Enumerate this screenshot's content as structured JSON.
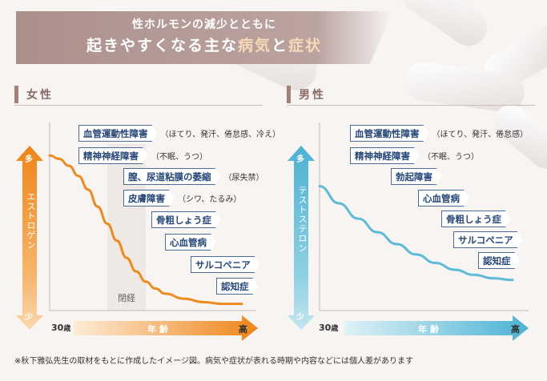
{
  "title": {
    "line1": "性ホルモンの減少とともに",
    "line2_pre": "起きやすくなる主な",
    "line2_highlight1": "病気",
    "line2_mid": "と",
    "line2_highlight2": "症状"
  },
  "sections": {
    "female": "女性",
    "male": "男性"
  },
  "female_chart": {
    "hormone_label": "エストロゲン",
    "high_label": "多",
    "low_label": "少",
    "age_start": "30",
    "age_unit": "歳",
    "age_axis_label": "年齢",
    "age_end": "高",
    "menopause_label": "閉経",
    "conditions": [
      {
        "name": "血管運動性障害",
        "note": "（ほてり、発汗、倦怠感、冷え）"
      },
      {
        "name": "精神神経障害",
        "note": "（不眠、うつ）"
      },
      {
        "name": "膣、尿道粘膜の萎縮",
        "note": "（尿失禁）"
      },
      {
        "name": "皮膚障害",
        "note": "（シワ、たるみ）"
      },
      {
        "name": "骨粗しょう症",
        "note": ""
      },
      {
        "name": "心血管病",
        "note": ""
      },
      {
        "name": "サルコペニア",
        "note": ""
      },
      {
        "name": "認知症",
        "note": ""
      }
    ]
  },
  "male_chart": {
    "hormone_label": "テストステロン",
    "high_label": "多",
    "low_label": "少",
    "age_start": "30",
    "age_unit": "歳",
    "age_axis_label": "年齢",
    "age_end": "高",
    "conditions": [
      {
        "name": "血管運動性障害",
        "note": "（ほてり、発汗、倦怠感）"
      },
      {
        "name": "精神神経障害",
        "note": "（不眠、うつ）"
      },
      {
        "name": "勃起障害",
        "note": ""
      },
      {
        "name": "心血管病",
        "note": ""
      },
      {
        "name": "骨粗しょう症",
        "note": ""
      },
      {
        "name": "サルコペニア",
        "note": ""
      },
      {
        "name": "認知症",
        "note": ""
      }
    ]
  },
  "chart_data": [
    {
      "type": "line",
      "title": "女性",
      "series": [
        {
          "name": "エストロゲン",
          "x": [
            0,
            0.05,
            0.1,
            0.15,
            0.2,
            0.25,
            0.3,
            0.35,
            0.4,
            0.45,
            0.5,
            0.55,
            0.6,
            0.7,
            0.8,
            0.9,
            1.0
          ],
          "values": [
            0.9,
            0.88,
            0.84,
            0.78,
            0.7,
            0.6,
            0.5,
            0.4,
            0.3,
            0.22,
            0.16,
            0.12,
            0.09,
            0.06,
            0.04,
            0.03,
            0.03
          ]
        }
      ],
      "xlabel": "年齢",
      "ylabel": "エストロゲン",
      "xlim": [
        0,
        1
      ],
      "ylim": [
        0,
        1
      ],
      "annotations": [
        "閉経"
      ]
    },
    {
      "type": "line",
      "title": "男性",
      "series": [
        {
          "name": "テストステロン",
          "x": [
            0,
            0.1,
            0.2,
            0.3,
            0.4,
            0.5,
            0.6,
            0.7,
            0.8,
            0.9,
            1.0
          ],
          "values": [
            0.72,
            0.62,
            0.53,
            0.45,
            0.38,
            0.32,
            0.27,
            0.23,
            0.2,
            0.18,
            0.17
          ]
        }
      ],
      "xlabel": "年齢",
      "ylabel": "テストステロン",
      "xlim": [
        0,
        1
      ],
      "ylim": [
        0,
        1
      ]
    }
  ],
  "footnote": "※秋下雅弘先生の取材をもとに作成したイメージ図。病気や症状が表れる時期や内容などには個人差があります",
  "colors": {
    "female_curve": "#ee8a1e",
    "male_curve": "#5bbbd8",
    "tag_border": "#4d6b9a",
    "tag_text": "#27477a"
  }
}
